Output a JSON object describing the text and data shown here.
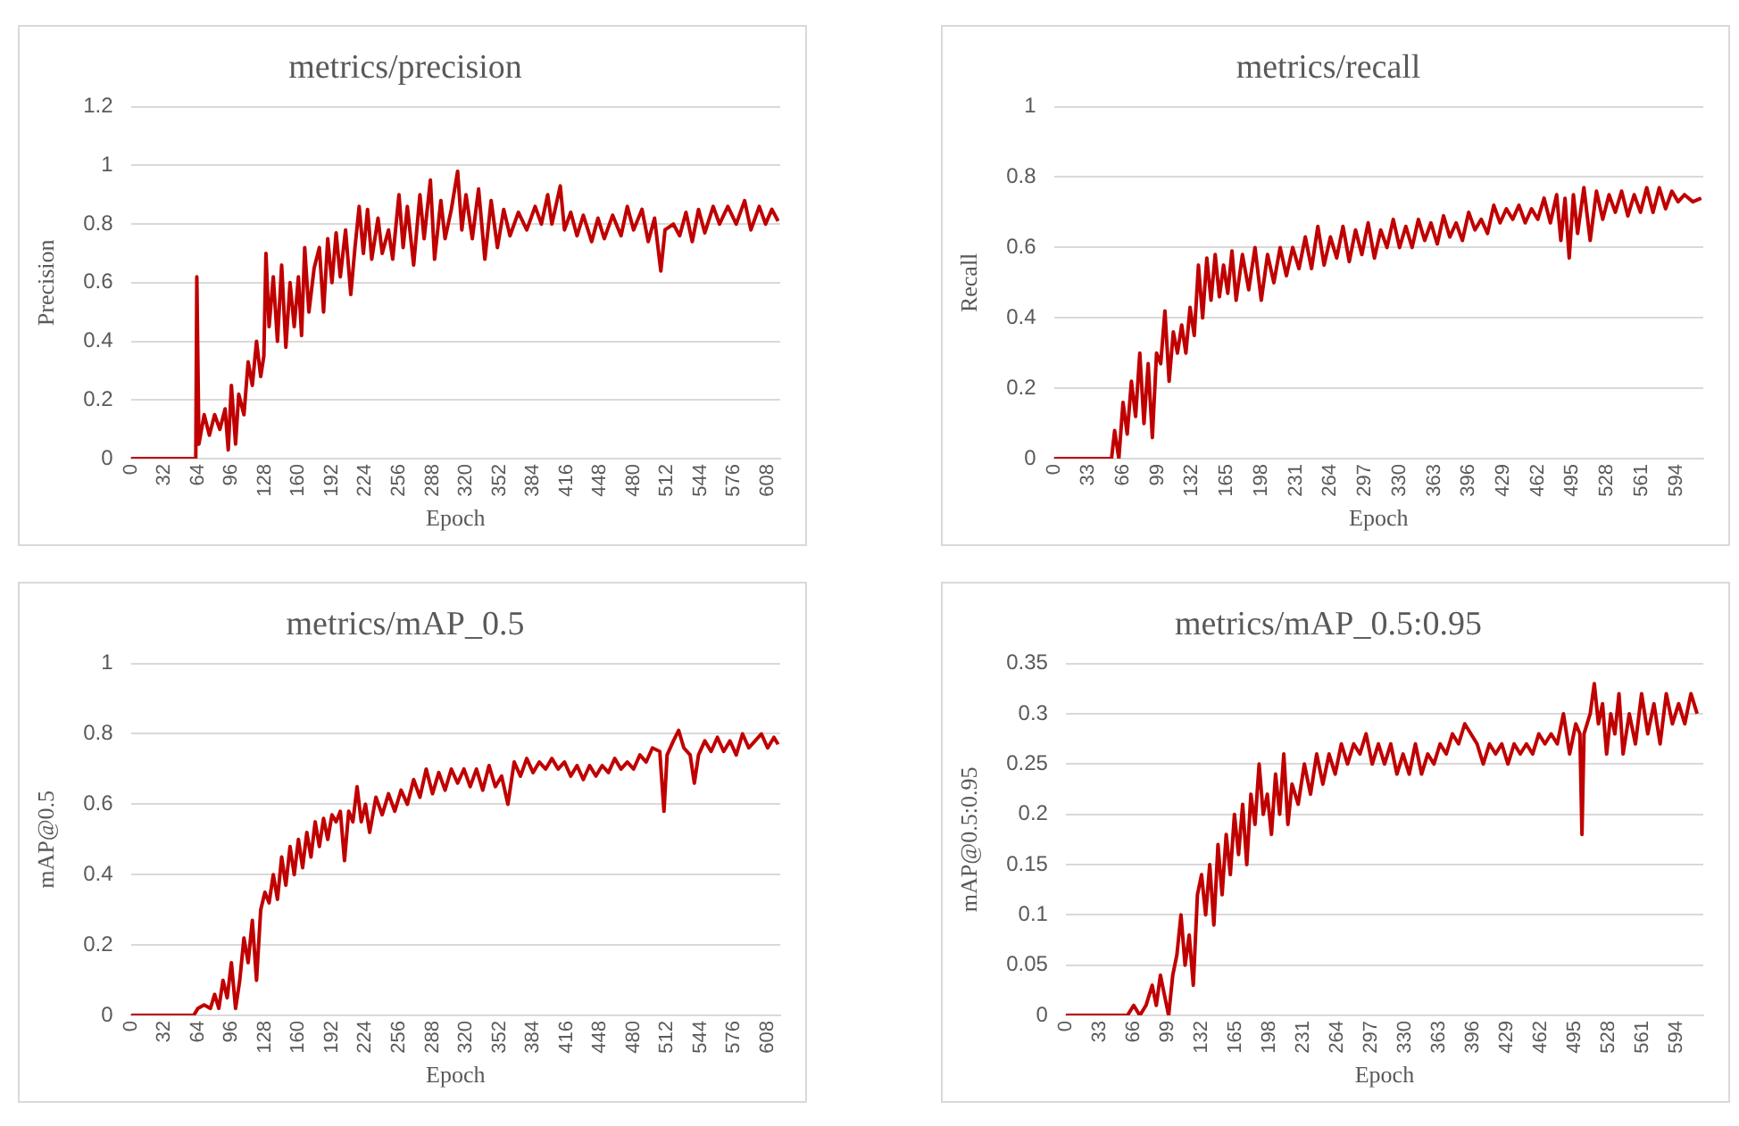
{
  "chart_data": [
    {
      "type": "line",
      "title": "metrics/precision",
      "xlabel": "Epoch",
      "ylabel": "Precision",
      "color": "#c00000",
      "grid": "y",
      "xlim": [
        0,
        620
      ],
      "xticks": [
        0,
        32,
        64,
        96,
        128,
        160,
        192,
        224,
        256,
        288,
        320,
        352,
        384,
        416,
        448,
        480,
        512,
        544,
        576,
        608
      ],
      "ylim": [
        0,
        1.2
      ],
      "yticks": [
        0,
        0.2,
        0.4,
        0.6,
        0.8,
        1,
        1.2
      ],
      "x": [
        0,
        62,
        63,
        65,
        70,
        75,
        80,
        85,
        90,
        93,
        96,
        100,
        103,
        108,
        112,
        116,
        120,
        124,
        127,
        129,
        132,
        136,
        140,
        144,
        148,
        152,
        156,
        160,
        163,
        166,
        170,
        175,
        180,
        184,
        188,
        192,
        196,
        200,
        205,
        210,
        214,
        218,
        222,
        226,
        230,
        236,
        240,
        246,
        250,
        256,
        260,
        264,
        270,
        276,
        280,
        286,
        290,
        296,
        300,
        306,
        312,
        316,
        320,
        326,
        332,
        338,
        344,
        350,
        356,
        362,
        370,
        378,
        386,
        392,
        398,
        402,
        410,
        414,
        420,
        426,
        432,
        440,
        446,
        452,
        460,
        468,
        474,
        480,
        488,
        494,
        500,
        506,
        510,
        518,
        524,
        530,
        536,
        542,
        548,
        556,
        562,
        570,
        578,
        586,
        592,
        600,
        606,
        612,
        618
      ],
      "values": [
        0,
        0,
        0.62,
        0.05,
        0.15,
        0.08,
        0.15,
        0.1,
        0.17,
        0.03,
        0.25,
        0.05,
        0.22,
        0.15,
        0.33,
        0.25,
        0.4,
        0.28,
        0.35,
        0.7,
        0.45,
        0.62,
        0.4,
        0.66,
        0.38,
        0.6,
        0.45,
        0.62,
        0.42,
        0.72,
        0.5,
        0.65,
        0.72,
        0.5,
        0.75,
        0.6,
        0.77,
        0.62,
        0.78,
        0.56,
        0.72,
        0.86,
        0.7,
        0.85,
        0.68,
        0.82,
        0.7,
        0.78,
        0.68,
        0.9,
        0.72,
        0.86,
        0.66,
        0.9,
        0.75,
        0.95,
        0.68,
        0.88,
        0.75,
        0.85,
        0.98,
        0.78,
        0.9,
        0.75,
        0.92,
        0.68,
        0.88,
        0.72,
        0.85,
        0.76,
        0.84,
        0.78,
        0.86,
        0.8,
        0.9,
        0.8,
        0.93,
        0.78,
        0.84,
        0.76,
        0.83,
        0.74,
        0.82,
        0.75,
        0.83,
        0.76,
        0.86,
        0.78,
        0.85,
        0.74,
        0.82,
        0.64,
        0.78,
        0.8,
        0.76,
        0.84,
        0.74,
        0.85,
        0.77,
        0.86,
        0.8,
        0.86,
        0.8,
        0.88,
        0.78,
        0.86,
        0.8,
        0.85,
        0.81
      ]
    },
    {
      "type": "line",
      "title": "metrics/recall",
      "xlabel": "Epoch",
      "ylabel": "Recall",
      "color": "#c00000",
      "grid": "y",
      "xlim": [
        0,
        620
      ],
      "xticks": [
        0,
        33,
        66,
        99,
        132,
        165,
        198,
        231,
        264,
        297,
        330,
        363,
        396,
        429,
        462,
        495,
        528,
        561,
        594
      ],
      "ylim": [
        0,
        1
      ],
      "yticks": [
        0,
        0.2,
        0.4,
        0.6,
        0.8,
        1
      ],
      "x": [
        0,
        55,
        58,
        62,
        66,
        70,
        74,
        78,
        82,
        86,
        90,
        94,
        98,
        102,
        106,
        110,
        114,
        118,
        122,
        126,
        130,
        134,
        138,
        142,
        146,
        150,
        154,
        158,
        162,
        166,
        170,
        174,
        180,
        186,
        192,
        198,
        204,
        210,
        216,
        222,
        228,
        234,
        240,
        246,
        252,
        258,
        264,
        270,
        276,
        282,
        288,
        294,
        300,
        306,
        312,
        318,
        324,
        330,
        336,
        342,
        348,
        354,
        360,
        366,
        372,
        378,
        384,
        390,
        396,
        402,
        408,
        414,
        420,
        426,
        432,
        438,
        444,
        450,
        456,
        462,
        468,
        474,
        480,
        484,
        488,
        492,
        496,
        500,
        506,
        512,
        518,
        524,
        530,
        536,
        542,
        548,
        554,
        560,
        566,
        572,
        578,
        584,
        590,
        596,
        602,
        610,
        618
      ],
      "values": [
        0,
        0,
        0.08,
        0,
        0.16,
        0.07,
        0.22,
        0.12,
        0.3,
        0.1,
        0.27,
        0.06,
        0.3,
        0.27,
        0.42,
        0.22,
        0.36,
        0.3,
        0.38,
        0.3,
        0.43,
        0.35,
        0.55,
        0.4,
        0.57,
        0.45,
        0.58,
        0.46,
        0.55,
        0.47,
        0.59,
        0.45,
        0.58,
        0.48,
        0.6,
        0.45,
        0.58,
        0.5,
        0.6,
        0.52,
        0.6,
        0.54,
        0.63,
        0.54,
        0.66,
        0.55,
        0.63,
        0.57,
        0.66,
        0.56,
        0.65,
        0.58,
        0.67,
        0.57,
        0.65,
        0.6,
        0.68,
        0.6,
        0.66,
        0.6,
        0.68,
        0.62,
        0.67,
        0.61,
        0.69,
        0.63,
        0.67,
        0.62,
        0.7,
        0.65,
        0.68,
        0.64,
        0.72,
        0.67,
        0.71,
        0.68,
        0.72,
        0.67,
        0.71,
        0.68,
        0.74,
        0.67,
        0.75,
        0.62,
        0.74,
        0.57,
        0.75,
        0.64,
        0.77,
        0.62,
        0.76,
        0.68,
        0.75,
        0.7,
        0.76,
        0.69,
        0.75,
        0.7,
        0.77,
        0.7,
        0.77,
        0.71,
        0.76,
        0.73,
        0.75,
        0.73,
        0.74
      ]
    },
    {
      "type": "line",
      "title": "metrics/mAP_0.5",
      "xlabel": "Epoch",
      "ylabel": "mAP@0.5",
      "color": "#c00000",
      "grid": "y",
      "xlim": [
        0,
        620
      ],
      "xticks": [
        0,
        32,
        64,
        96,
        128,
        160,
        192,
        224,
        256,
        288,
        320,
        352,
        384,
        416,
        448,
        480,
        512,
        544,
        576,
        608
      ],
      "ylim": [
        0,
        1
      ],
      "yticks": [
        0,
        0.2,
        0.4,
        0.6,
        0.8,
        1
      ],
      "x": [
        0,
        60,
        64,
        70,
        76,
        80,
        84,
        88,
        92,
        96,
        100,
        104,
        108,
        112,
        116,
        120,
        124,
        128,
        132,
        136,
        140,
        144,
        148,
        152,
        156,
        160,
        164,
        168,
        172,
        176,
        180,
        184,
        188,
        192,
        196,
        200,
        204,
        208,
        212,
        216,
        220,
        224,
        228,
        234,
        240,
        246,
        252,
        258,
        264,
        270,
        276,
        282,
        288,
        294,
        300,
        306,
        312,
        318,
        324,
        330,
        336,
        342,
        348,
        354,
        360,
        366,
        372,
        378,
        384,
        390,
        396,
        402,
        408,
        414,
        420,
        426,
        432,
        438,
        444,
        450,
        456,
        462,
        468,
        474,
        480,
        486,
        492,
        498,
        505,
        509,
        512,
        518,
        523,
        528,
        534,
        538,
        542,
        548,
        554,
        560,
        566,
        572,
        578,
        584,
        590,
        596,
        602,
        608,
        614,
        618
      ],
      "values": [
        0,
        0,
        0.02,
        0.03,
        0.02,
        0.06,
        0.02,
        0.1,
        0.05,
        0.15,
        0.02,
        0.1,
        0.22,
        0.15,
        0.27,
        0.1,
        0.3,
        0.35,
        0.32,
        0.4,
        0.33,
        0.45,
        0.37,
        0.48,
        0.4,
        0.5,
        0.42,
        0.52,
        0.45,
        0.55,
        0.48,
        0.56,
        0.5,
        0.57,
        0.55,
        0.58,
        0.44,
        0.58,
        0.55,
        0.65,
        0.55,
        0.6,
        0.52,
        0.62,
        0.57,
        0.63,
        0.58,
        0.64,
        0.6,
        0.67,
        0.62,
        0.7,
        0.63,
        0.69,
        0.64,
        0.7,
        0.66,
        0.7,
        0.65,
        0.7,
        0.64,
        0.71,
        0.65,
        0.68,
        0.6,
        0.72,
        0.68,
        0.73,
        0.69,
        0.72,
        0.7,
        0.73,
        0.7,
        0.72,
        0.68,
        0.71,
        0.67,
        0.71,
        0.68,
        0.71,
        0.69,
        0.73,
        0.7,
        0.72,
        0.7,
        0.74,
        0.72,
        0.76,
        0.75,
        0.58,
        0.74,
        0.78,
        0.81,
        0.76,
        0.74,
        0.66,
        0.74,
        0.78,
        0.75,
        0.79,
        0.75,
        0.78,
        0.74,
        0.8,
        0.76,
        0.78,
        0.8,
        0.76,
        0.79,
        0.77
      ]
    },
    {
      "type": "line",
      "title": "metrics/mAP_0.5:0.95",
      "xlabel": "Epoch",
      "ylabel": "mAP@0.5:0.95",
      "color": "#c00000",
      "grid": "y",
      "xlim": [
        0,
        620
      ],
      "xticks": [
        0,
        33,
        66,
        99,
        132,
        165,
        198,
        231,
        264,
        297,
        330,
        363,
        396,
        429,
        462,
        495,
        528,
        561,
        594
      ],
      "ylim": [
        0,
        0.35
      ],
      "yticks": [
        0,
        0.05,
        0.1,
        0.15,
        0.2,
        0.25,
        0.3,
        0.35
      ],
      "x": [
        0,
        60,
        66,
        72,
        78,
        84,
        88,
        92,
        96,
        100,
        104,
        108,
        112,
        116,
        120,
        124,
        128,
        132,
        136,
        140,
        144,
        148,
        152,
        156,
        160,
        164,
        168,
        172,
        176,
        180,
        184,
        188,
        192,
        196,
        200,
        204,
        208,
        212,
        216,
        220,
        226,
        232,
        238,
        244,
        250,
        256,
        262,
        268,
        274,
        280,
        286,
        292,
        298,
        304,
        310,
        316,
        322,
        328,
        334,
        340,
        346,
        352,
        358,
        364,
        370,
        376,
        382,
        388,
        394,
        400,
        406,
        412,
        418,
        424,
        430,
        436,
        442,
        448,
        454,
        460,
        466,
        472,
        478,
        484,
        490,
        496,
        500,
        502,
        504,
        510,
        514,
        518,
        522,
        526,
        530,
        534,
        538,
        542,
        548,
        554,
        560,
        566,
        572,
        578,
        584,
        590,
        596,
        602,
        608,
        614
      ],
      "values": [
        0,
        0,
        0.01,
        0,
        0.01,
        0.03,
        0.01,
        0.04,
        0.02,
        0,
        0.04,
        0.06,
        0.1,
        0.05,
        0.08,
        0.03,
        0.12,
        0.14,
        0.1,
        0.15,
        0.09,
        0.17,
        0.12,
        0.18,
        0.14,
        0.2,
        0.16,
        0.21,
        0.15,
        0.22,
        0.19,
        0.25,
        0.2,
        0.22,
        0.18,
        0.24,
        0.2,
        0.26,
        0.19,
        0.23,
        0.21,
        0.25,
        0.22,
        0.26,
        0.23,
        0.26,
        0.24,
        0.27,
        0.25,
        0.27,
        0.26,
        0.28,
        0.25,
        0.27,
        0.25,
        0.27,
        0.24,
        0.26,
        0.24,
        0.27,
        0.24,
        0.26,
        0.25,
        0.27,
        0.26,
        0.28,
        0.27,
        0.29,
        0.28,
        0.27,
        0.25,
        0.27,
        0.26,
        0.27,
        0.25,
        0.27,
        0.26,
        0.27,
        0.26,
        0.28,
        0.27,
        0.28,
        0.27,
        0.3,
        0.26,
        0.29,
        0.28,
        0.18,
        0.28,
        0.3,
        0.33,
        0.29,
        0.31,
        0.26,
        0.3,
        0.28,
        0.32,
        0.26,
        0.3,
        0.27,
        0.32,
        0.28,
        0.31,
        0.27,
        0.32,
        0.29,
        0.31,
        0.29,
        0.32,
        0.3
      ]
    }
  ]
}
